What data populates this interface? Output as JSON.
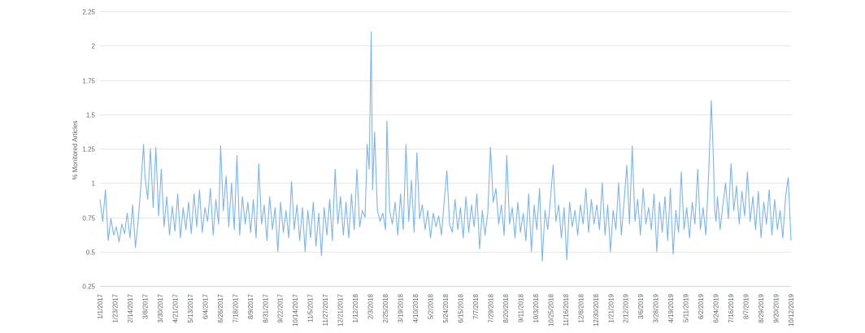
{
  "colors": {
    "series": "#7cb5ec",
    "grid": "#e6e6e6",
    "text": "#666666"
  },
  "chart_data": {
    "type": "line",
    "title": "",
    "xlabel": "",
    "ylabel": "% Monitored Articles",
    "ylim": [
      0.25,
      2.25
    ],
    "yticks": [
      "0.25",
      "0.5",
      "0.75",
      "1",
      "1.25",
      "1.5",
      "1.75",
      "2",
      "2.25"
    ],
    "xlim": [
      "2017-01-01",
      "2019-10-12"
    ],
    "grid": true,
    "legend": "none",
    "xticks": [
      "1/1/2017",
      "1/23/2017",
      "2/14/2017",
      "3/8/2017",
      "3/30/2017",
      "4/21/2017",
      "5/13/2017",
      "6/4/2017",
      "6/26/2017",
      "7/18/2017",
      "8/9/2017",
      "8/31/2017",
      "9/22/2017",
      "10/14/2017",
      "11/5/2017",
      "11/27/2017",
      "12/21/2017",
      "1/12/2018",
      "2/3/2018",
      "2/25/2018",
      "3/19/2018",
      "4/10/2018",
      "5/2/2018",
      "5/24/2018",
      "6/15/2018",
      "7/7/2018",
      "7/29/2018",
      "8/20/2018",
      "9/11/2018",
      "10/3/2018",
      "10/25/2018",
      "11/16/2018",
      "12/8/2018",
      "12/30/2018",
      "1/21/2019",
      "2/12/2019",
      "3/6/2019",
      "3/28/2019",
      "4/19/2019",
      "5/11/2019",
      "6/2/2019",
      "6/24/2019",
      "7/16/2019",
      "8/7/2019",
      "8/29/2019",
      "9/20/2019",
      "10/12/2019"
    ],
    "series": [
      {
        "x": [
          "2017-01-01",
          "2017-01-05",
          "2017-01-09",
          "2017-01-13",
          "2017-01-17",
          "2017-01-21",
          "2017-01-25",
          "2017-01-29",
          "2017-02-02",
          "2017-02-06",
          "2017-02-10",
          "2017-02-14",
          "2017-02-18",
          "2017-02-22",
          "2017-02-26",
          "2017-03-02",
          "2017-03-06",
          "2017-03-08",
          "2017-03-12",
          "2017-03-16",
          "2017-03-20",
          "2017-03-24",
          "2017-03-28",
          "2017-04-01",
          "2017-04-05",
          "2017-04-09",
          "2017-04-13",
          "2017-04-17",
          "2017-04-21",
          "2017-04-25",
          "2017-04-29",
          "2017-05-03",
          "2017-05-07",
          "2017-05-11",
          "2017-05-15",
          "2017-05-19",
          "2017-05-23",
          "2017-05-27",
          "2017-05-31",
          "2017-06-04",
          "2017-06-08",
          "2017-06-12",
          "2017-06-16",
          "2017-06-20",
          "2017-06-24",
          "2017-06-27",
          "2017-07-01",
          "2017-07-05",
          "2017-07-09",
          "2017-07-13",
          "2017-07-17",
          "2017-07-21",
          "2017-07-25",
          "2017-07-29",
          "2017-08-02",
          "2017-08-06",
          "2017-08-10",
          "2017-08-14",
          "2017-08-18",
          "2017-08-22",
          "2017-08-26",
          "2017-08-30",
          "2017-09-03",
          "2017-09-07",
          "2017-09-11",
          "2017-09-15",
          "2017-09-19",
          "2017-09-23",
          "2017-09-27",
          "2017-10-01",
          "2017-10-05",
          "2017-10-09",
          "2017-10-13",
          "2017-10-17",
          "2017-10-21",
          "2017-10-25",
          "2017-10-29",
          "2017-11-02",
          "2017-11-06",
          "2017-11-10",
          "2017-11-14",
          "2017-11-18",
          "2017-11-22",
          "2017-11-26",
          "2017-11-30",
          "2017-12-04",
          "2017-12-08",
          "2017-12-12",
          "2017-12-16",
          "2017-12-20",
          "2017-12-24",
          "2017-12-28",
          "2018-01-01",
          "2018-01-05",
          "2018-01-09",
          "2018-01-13",
          "2018-01-17",
          "2018-01-21",
          "2018-01-25",
          "2018-01-28",
          "2018-01-31",
          "2018-02-03",
          "2018-02-05",
          "2018-02-08",
          "2018-02-12",
          "2018-02-16",
          "2018-02-20",
          "2018-02-24",
          "2018-02-26",
          "2018-03-02",
          "2018-03-06",
          "2018-03-10",
          "2018-03-14",
          "2018-03-18",
          "2018-03-22",
          "2018-03-26",
          "2018-03-30",
          "2018-04-03",
          "2018-04-07",
          "2018-04-11",
          "2018-04-15",
          "2018-04-19",
          "2018-04-23",
          "2018-04-27",
          "2018-05-01",
          "2018-05-05",
          "2018-05-09",
          "2018-05-13",
          "2018-05-17",
          "2018-05-21",
          "2018-05-25",
          "2018-05-29",
          "2018-06-02",
          "2018-06-06",
          "2018-06-10",
          "2018-06-14",
          "2018-06-18",
          "2018-06-22",
          "2018-06-26",
          "2018-06-30",
          "2018-07-04",
          "2018-07-08",
          "2018-07-12",
          "2018-07-16",
          "2018-07-20",
          "2018-07-24",
          "2018-07-28",
          "2018-08-01",
          "2018-08-05",
          "2018-08-09",
          "2018-08-13",
          "2018-08-17",
          "2018-08-21",
          "2018-08-25",
          "2018-08-29",
          "2018-09-02",
          "2018-09-06",
          "2018-09-10",
          "2018-09-14",
          "2018-09-18",
          "2018-09-22",
          "2018-09-26",
          "2018-09-30",
          "2018-10-04",
          "2018-10-08",
          "2018-10-12",
          "2018-10-16",
          "2018-10-20",
          "2018-10-24",
          "2018-10-28",
          "2018-11-01",
          "2018-11-05",
          "2018-11-09",
          "2018-11-13",
          "2018-11-17",
          "2018-11-21",
          "2018-11-25",
          "2018-11-29",
          "2018-12-03",
          "2018-12-07",
          "2018-12-11",
          "2018-12-15",
          "2018-12-19",
          "2018-12-23",
          "2018-12-27",
          "2018-12-31",
          "2019-01-04",
          "2019-01-08",
          "2019-01-12",
          "2019-01-16",
          "2019-01-20",
          "2019-01-24",
          "2019-01-28",
          "2019-02-01",
          "2019-02-05",
          "2019-02-09",
          "2019-02-13",
          "2019-02-17",
          "2019-02-21",
          "2019-02-25",
          "2019-03-01",
          "2019-03-05",
          "2019-03-09",
          "2019-03-13",
          "2019-03-17",
          "2019-03-21",
          "2019-03-25",
          "2019-03-29",
          "2019-04-02",
          "2019-04-06",
          "2019-04-10",
          "2019-04-14",
          "2019-04-18",
          "2019-04-22",
          "2019-04-26",
          "2019-04-30",
          "2019-05-04",
          "2019-05-08",
          "2019-05-12",
          "2019-05-16",
          "2019-05-20",
          "2019-05-24",
          "2019-05-28",
          "2019-06-01",
          "2019-06-05",
          "2019-06-09",
          "2019-06-13",
          "2019-06-17",
          "2019-06-20",
          "2019-06-22",
          "2019-06-24",
          "2019-06-26",
          "2019-06-30",
          "2019-07-04",
          "2019-07-08",
          "2019-07-12",
          "2019-07-16",
          "2019-07-20",
          "2019-07-24",
          "2019-07-28",
          "2019-08-01",
          "2019-08-05",
          "2019-08-09",
          "2019-08-13",
          "2019-08-17",
          "2019-08-21",
          "2019-08-25",
          "2019-08-29",
          "2019-09-02",
          "2019-09-06",
          "2019-09-10",
          "2019-09-14",
          "2019-09-18",
          "2019-09-22",
          "2019-09-26",
          "2019-09-30",
          "2019-10-04",
          "2019-10-08",
          "2019-10-12"
        ],
        "y": [
          0.88,
          0.72,
          0.95,
          0.58,
          0.74,
          0.62,
          0.68,
          0.57,
          0.7,
          0.63,
          0.78,
          0.6,
          0.84,
          0.53,
          0.72,
          0.98,
          1.28,
          1.05,
          0.88,
          1.25,
          0.82,
          1.26,
          0.76,
          1.1,
          0.68,
          0.9,
          0.62,
          0.83,
          0.65,
          0.92,
          0.6,
          0.82,
          0.66,
          0.86,
          0.63,
          0.92,
          0.68,
          0.95,
          0.64,
          0.82,
          0.72,
          0.96,
          0.62,
          0.88,
          0.7,
          1.27,
          0.8,
          1.05,
          0.68,
          1.0,
          0.66,
          1.2,
          0.62,
          0.9,
          0.7,
          0.86,
          0.64,
          0.88,
          0.6,
          1.14,
          0.7,
          0.84,
          0.58,
          0.9,
          0.66,
          0.82,
          0.5,
          0.86,
          0.64,
          0.8,
          0.6,
          1.01,
          0.66,
          0.84,
          0.58,
          0.82,
          0.5,
          0.8,
          0.6,
          0.86,
          0.54,
          0.78,
          0.47,
          0.82,
          0.62,
          0.88,
          0.58,
          1.1,
          0.7,
          0.9,
          0.62,
          0.86,
          0.6,
          0.92,
          0.66,
          1.1,
          0.68,
          0.8,
          0.75,
          1.28,
          1.1,
          2.1,
          0.95,
          1.37,
          0.8,
          0.72,
          0.78,
          0.66,
          1.45,
          0.8,
          0.7,
          0.86,
          0.62,
          0.92,
          0.66,
          1.28,
          0.72,
          1.02,
          0.64,
          1.22,
          0.74,
          0.84,
          0.66,
          0.8,
          0.6,
          0.78,
          0.68,
          0.76,
          0.62,
          0.86,
          1.09,
          0.7,
          0.64,
          0.88,
          0.66,
          0.82,
          0.6,
          0.9,
          0.64,
          0.84,
          0.68,
          0.92,
          0.52,
          0.8,
          0.62,
          0.78,
          1.26,
          0.86,
          0.96,
          0.7,
          0.84,
          0.62,
          1.2,
          0.7,
          0.82,
          0.6,
          0.86,
          0.64,
          0.78,
          0.58,
          0.92,
          0.5,
          0.84,
          0.66,
          0.96,
          0.43,
          0.8,
          0.66,
          0.88,
          1.13,
          0.72,
          0.84,
          0.6,
          0.82,
          0.44,
          0.86,
          0.68,
          0.8,
          0.62,
          0.84,
          0.7,
          0.96,
          0.64,
          0.88,
          0.7,
          0.84,
          0.66,
          1.0,
          0.62,
          0.84,
          0.5,
          0.8,
          0.66,
          1.0,
          0.62,
          0.86,
          1.13,
          0.7,
          1.27,
          0.72,
          0.88,
          0.62,
          0.96,
          0.7,
          0.82,
          0.66,
          0.92,
          0.5,
          0.86,
          0.64,
          0.9,
          0.58,
          0.96,
          0.48,
          0.8,
          0.64,
          1.08,
          0.66,
          0.82,
          0.6,
          0.86,
          0.7,
          1.1,
          0.66,
          0.82,
          0.62,
          1.05,
          1.6,
          1.2,
          0.8,
          0.72,
          0.9,
          0.66,
          0.84,
          1.0,
          0.74,
          1.14,
          0.8,
          0.98,
          0.7,
          0.94,
          0.76,
          1.08,
          0.72,
          0.9,
          0.66,
          0.94,
          0.6,
          0.86,
          0.7,
          0.95,
          0.62,
          0.88,
          0.66,
          0.8,
          0.6,
          0.9,
          1.04,
          0.58
        ]
      }
    ]
  }
}
